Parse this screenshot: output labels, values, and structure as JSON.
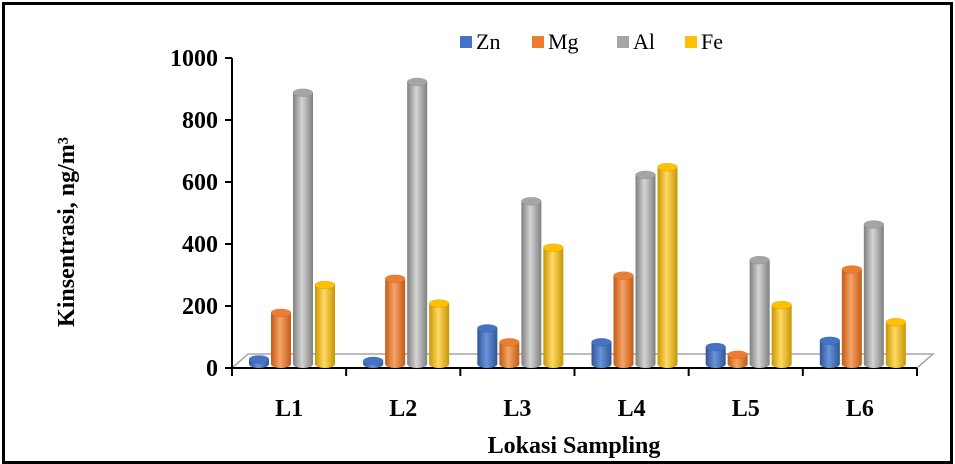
{
  "chart_data": {
    "type": "bar",
    "title": "",
    "xlabel": "Lokasi Sampling",
    "ylabel": "Kinsentrasi, ng/m³",
    "ylim": [
      0,
      1000
    ],
    "yticks": [
      "0",
      "200",
      "400",
      "600",
      "800",
      "1000"
    ],
    "grid": false,
    "legend_position": "top",
    "categories": [
      "L1",
      "L2",
      "L3",
      "L4",
      "L5",
      "L6"
    ],
    "series": [
      {
        "name": "Zn",
        "color": "#4472C4",
        "values": [
          15,
          10,
          115,
          70,
          55,
          75
        ]
      },
      {
        "name": "Mg",
        "color": "#ED7D31",
        "values": [
          165,
          275,
          70,
          285,
          30,
          305
        ]
      },
      {
        "name": "Al",
        "color": "#A5A5A5",
        "values": [
          875,
          910,
          525,
          610,
          335,
          450
        ]
      },
      {
        "name": "Fe",
        "color": "#FFC000",
        "values": [
          255,
          195,
          375,
          635,
          190,
          135
        ]
      }
    ]
  }
}
